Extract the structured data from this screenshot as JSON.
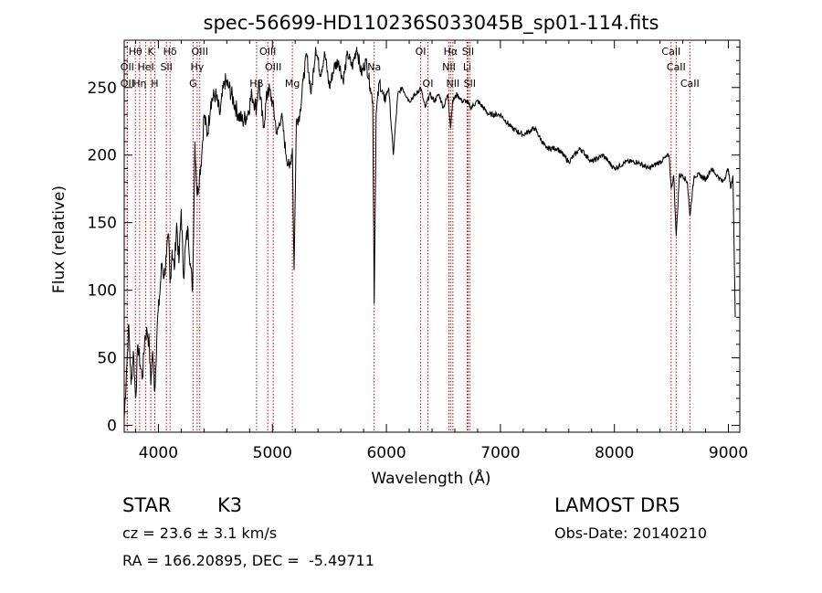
{
  "chart_data": {
    "type": "line",
    "title": "spec-56699-HD110236S033045B_sp01-114.fits",
    "xlabel": "Wavelength (Å)",
    "ylabel": "Flux (relative)",
    "xlim": [
      3700,
      9100
    ],
    "ylim": [
      -5,
      285
    ],
    "xticks": [
      4000,
      5000,
      6000,
      7000,
      8000,
      9000
    ],
    "yticks": [
      0,
      50,
      100,
      150,
      200,
      250
    ],
    "grid": false,
    "line_color": "#000000",
    "marker_color": "#cc0000",
    "spectrum": {
      "name": "",
      "x": [
        3700,
        3720,
        3740,
        3760,
        3780,
        3800,
        3820,
        3840,
        3860,
        3880,
        3900,
        3920,
        3933,
        3950,
        3968,
        3990,
        4010,
        4030,
        4050,
        4070,
        4090,
        4102,
        4120,
        4140,
        4160,
        4180,
        4200,
        4220,
        4240,
        4260,
        4280,
        4300,
        4320,
        4340,
        4360,
        4380,
        4400,
        4430,
        4460,
        4500,
        4540,
        4580,
        4620,
        4660,
        4700,
        4740,
        4780,
        4820,
        4861,
        4880,
        4920,
        4960,
        5000,
        5040,
        5080,
        5120,
        5150,
        5175,
        5190,
        5210,
        5240,
        5270,
        5300,
        5340,
        5380,
        5420,
        5460,
        5500,
        5540,
        5580,
        5620,
        5660,
        5700,
        5740,
        5780,
        5820,
        5860,
        5880,
        5893,
        5910,
        5940,
        5980,
        6020,
        6060,
        6100,
        6140,
        6200,
        6260,
        6300,
        6340,
        6380,
        6420,
        6460,
        6500,
        6540,
        6563,
        6580,
        6620,
        6660,
        6700,
        6740,
        6800,
        6900,
        7000,
        7100,
        7200,
        7300,
        7400,
        7500,
        7600,
        7700,
        7800,
        7900,
        8000,
        8100,
        8200,
        8300,
        8400,
        8480,
        8498,
        8520,
        8542,
        8570,
        8600,
        8640,
        8662,
        8700,
        8750,
        8800,
        8850,
        8900,
        8950,
        9000,
        9020,
        9040,
        9060
      ],
      "y": [
        5,
        40,
        75,
        30,
        55,
        20,
        60,
        45,
        35,
        65,
        70,
        60,
        30,
        55,
        25,
        75,
        95,
        120,
        110,
        125,
        140,
        105,
        130,
        115,
        150,
        120,
        160,
        110,
        135,
        145,
        120,
        100,
        210,
        170,
        185,
        200,
        230,
        215,
        240,
        245,
        230,
        255,
        250,
        240,
        230,
        225,
        230,
        245,
        235,
        255,
        220,
        250,
        240,
        215,
        230,
        200,
        190,
        205,
        115,
        225,
        230,
        255,
        275,
        245,
        280,
        260,
        275,
        250,
        265,
        270,
        255,
        275,
        265,
        280,
        260,
        270,
        250,
        240,
        90,
        230,
        255,
        240,
        250,
        200,
        245,
        250,
        240,
        245,
        250,
        235,
        245,
        240,
        245,
        235,
        245,
        220,
        240,
        245,
        240,
        240,
        235,
        240,
        230,
        230,
        220,
        215,
        220,
        205,
        205,
        195,
        205,
        195,
        200,
        190,
        195,
        195,
        190,
        195,
        200,
        175,
        185,
        140,
        185,
        185,
        180,
        155,
        185,
        185,
        182,
        190,
        185,
        180,
        190,
        175,
        185,
        80
      ]
    },
    "line_markers": [
      {
        "label": "Hθ",
        "x": 3798,
        "tier": 0
      },
      {
        "label": "K",
        "x": 3933,
        "tier": 0
      },
      {
        "label": "Hδ",
        "x": 4102,
        "tier": 0
      },
      {
        "label": "OIII",
        "x": 4363,
        "tier": 0
      },
      {
        "label": "OIII",
        "x": 4959,
        "tier": 0
      },
      {
        "label": "OI",
        "x": 6300,
        "tier": 0
      },
      {
        "label": "Hα",
        "x": 6563,
        "tier": 0
      },
      {
        "label": "SII",
        "x": 6716,
        "tier": 0
      },
      {
        "label": "CaII",
        "x": 8498,
        "tier": 0
      },
      {
        "label": "OII",
        "x": 3727,
        "tier": 1
      },
      {
        "label": "HeI",
        "x": 3889,
        "tier": 1
      },
      {
        "label": "SII",
        "x": 4070,
        "tier": 1
      },
      {
        "label": "Hγ",
        "x": 4340,
        "tier": 1
      },
      {
        "label": "OIII",
        "x": 5007,
        "tier": 1
      },
      {
        "label": "Na",
        "x": 5893,
        "tier": 1
      },
      {
        "label": "NII",
        "x": 6548,
        "tier": 1
      },
      {
        "label": "Li",
        "x": 6708,
        "tier": 1
      },
      {
        "label": "CaII",
        "x": 8542,
        "tier": 1
      },
      {
        "label": "OII",
        "x": 3727,
        "tier": 2
      },
      {
        "label": "Hη",
        "x": 3835,
        "tier": 2
      },
      {
        "label": "H",
        "x": 3968,
        "tier": 2
      },
      {
        "label": "G",
        "x": 4304,
        "tier": 2
      },
      {
        "label": "Hβ",
        "x": 4861,
        "tier": 2
      },
      {
        "label": "Mg",
        "x": 5175,
        "tier": 2
      },
      {
        "label": "OI",
        "x": 6364,
        "tier": 2
      },
      {
        "label": "NII",
        "x": 6583,
        "tier": 2
      },
      {
        "label": "SII",
        "x": 6731,
        "tier": 2
      },
      {
        "label": "CaII",
        "x": 8662,
        "tier": 2
      }
    ]
  },
  "info": {
    "object_class": "STAR",
    "subclass": "K3",
    "survey": "LAMOST DR5",
    "cz": "cz = 23.6 ± 3.1 km/s",
    "obs_date": "Obs-Date: 20140210",
    "coords": "RA = 166.20895, DEC =  -5.49711"
  }
}
